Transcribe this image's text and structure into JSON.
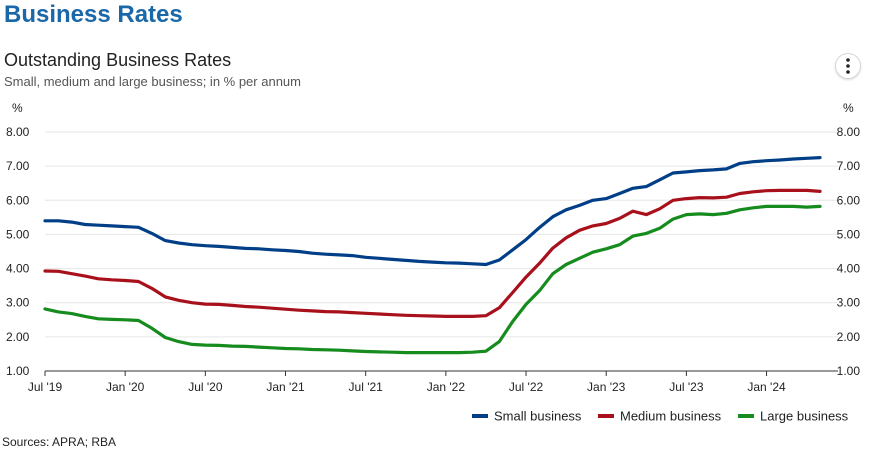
{
  "page": {
    "title": "Business Rates",
    "source": "Sources: APRA; RBA"
  },
  "menu": {
    "icon": "more-vertical-icon"
  },
  "chart_data": {
    "type": "line",
    "title": "Outstanding Business Rates",
    "subtitle": "Small, medium and large business; in % per annum",
    "ylabel_left": "%",
    "ylabel_right": "%",
    "ylim": [
      1,
      8
    ],
    "yticks": [
      "1.00",
      "2.00",
      "3.00",
      "4.00",
      "5.00",
      "6.00",
      "7.00",
      "8.00"
    ],
    "xlim": [
      "2019-07",
      "2024-05"
    ],
    "xticks": [
      "Jul '19",
      "Jan '20",
      "Jul '20",
      "Jan '21",
      "Jul '21",
      "Jan '22",
      "Jul '22",
      "Jan '23",
      "Jul '23",
      "Jan '24"
    ],
    "grid": true,
    "legend_position": "bottom-right",
    "x": [
      "2019-07",
      "2019-08",
      "2019-09",
      "2019-10",
      "2019-11",
      "2019-12",
      "2020-01",
      "2020-02",
      "2020-03",
      "2020-04",
      "2020-05",
      "2020-06",
      "2020-07",
      "2020-08",
      "2020-09",
      "2020-10",
      "2020-11",
      "2020-12",
      "2021-01",
      "2021-02",
      "2021-03",
      "2021-04",
      "2021-05",
      "2021-06",
      "2021-07",
      "2021-08",
      "2021-09",
      "2021-10",
      "2021-11",
      "2021-12",
      "2022-01",
      "2022-02",
      "2022-03",
      "2022-04",
      "2022-05",
      "2022-06",
      "2022-07",
      "2022-08",
      "2022-09",
      "2022-10",
      "2022-11",
      "2022-12",
      "2023-01",
      "2023-02",
      "2023-03",
      "2023-04",
      "2023-05",
      "2023-06",
      "2023-07",
      "2023-08",
      "2023-09",
      "2023-10",
      "2023-11",
      "2023-12",
      "2024-01",
      "2024-02",
      "2024-03",
      "2024-04",
      "2024-05"
    ],
    "series": [
      {
        "name": "Small business",
        "color": "#003f87",
        "values": [
          5.4,
          5.4,
          5.36,
          5.29,
          5.27,
          5.25,
          5.23,
          5.21,
          5.03,
          4.82,
          4.75,
          4.7,
          4.67,
          4.65,
          4.62,
          4.59,
          4.58,
          4.55,
          4.53,
          4.5,
          4.45,
          4.42,
          4.4,
          4.38,
          4.33,
          4.3,
          4.27,
          4.24,
          4.21,
          4.19,
          4.17,
          4.16,
          4.14,
          4.12,
          4.25,
          4.55,
          4.85,
          5.2,
          5.52,
          5.72,
          5.85,
          6.0,
          6.05,
          6.2,
          6.35,
          6.4,
          6.6,
          6.8,
          6.83,
          6.87,
          6.89,
          6.92,
          7.08,
          7.13,
          7.16,
          7.18,
          7.21,
          7.23,
          7.25
        ]
      },
      {
        "name": "Medium business",
        "color": "#a8111c",
        "values": [
          3.93,
          3.92,
          3.85,
          3.78,
          3.7,
          3.67,
          3.65,
          3.62,
          3.42,
          3.17,
          3.07,
          3.0,
          2.96,
          2.95,
          2.92,
          2.89,
          2.87,
          2.84,
          2.81,
          2.78,
          2.76,
          2.74,
          2.73,
          2.71,
          2.69,
          2.67,
          2.65,
          2.63,
          2.62,
          2.61,
          2.6,
          2.6,
          2.6,
          2.62,
          2.85,
          3.3,
          3.75,
          4.15,
          4.6,
          4.9,
          5.12,
          5.25,
          5.32,
          5.47,
          5.68,
          5.58,
          5.75,
          6.0,
          6.05,
          6.08,
          6.07,
          6.09,
          6.2,
          6.25,
          6.28,
          6.29,
          6.29,
          6.29,
          6.26
        ]
      },
      {
        "name": "Large business",
        "color": "#168b1e",
        "values": [
          2.82,
          2.73,
          2.68,
          2.6,
          2.53,
          2.51,
          2.5,
          2.48,
          2.25,
          1.98,
          1.86,
          1.78,
          1.76,
          1.75,
          1.73,
          1.72,
          1.7,
          1.68,
          1.66,
          1.65,
          1.63,
          1.62,
          1.61,
          1.59,
          1.57,
          1.56,
          1.55,
          1.54,
          1.54,
          1.54,
          1.54,
          1.54,
          1.55,
          1.58,
          1.86,
          2.45,
          2.95,
          3.35,
          3.85,
          4.12,
          4.3,
          4.48,
          4.58,
          4.7,
          4.95,
          5.03,
          5.18,
          5.45,
          5.58,
          5.6,
          5.58,
          5.62,
          5.72,
          5.78,
          5.82,
          5.82,
          5.82,
          5.8,
          5.82
        ]
      }
    ],
    "colors": {
      "grid": "#e6e6e6",
      "axis": "#333333",
      "tick_text": "#222222"
    }
  }
}
